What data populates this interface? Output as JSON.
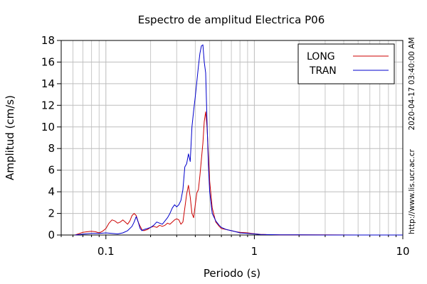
{
  "chart_data": {
    "type": "line",
    "title": "Espectro de amplitud Electrica P06",
    "xlabel": "Periodo (s)",
    "ylabel": "Amplitud (cm/s)",
    "x_scale": "log",
    "xlim": [
      0.05,
      10
    ],
    "ylim": [
      0,
      18
    ],
    "x_ticks": [
      {
        "value": 0.1,
        "label": "0.1"
      },
      {
        "value": 1,
        "label": "1"
      },
      {
        "value": 10,
        "label": "10"
      }
    ],
    "y_ticks": [
      {
        "value": 0,
        "label": "0"
      },
      {
        "value": 2,
        "label": "2"
      },
      {
        "value": 4,
        "label": "4"
      },
      {
        "value": 6,
        "label": "6"
      },
      {
        "value": 8,
        "label": "8"
      },
      {
        "value": 10,
        "label": "10"
      },
      {
        "value": 12,
        "label": "12"
      },
      {
        "value": 14,
        "label": "14"
      },
      {
        "value": 16,
        "label": "16"
      },
      {
        "value": 18,
        "label": "18"
      }
    ],
    "grid": true,
    "legend_position": "top-right",
    "series": [
      {
        "name": "LONG",
        "color": "#cc0000",
        "x": [
          0.062,
          0.065,
          0.07,
          0.075,
          0.08,
          0.085,
          0.09,
          0.095,
          0.1,
          0.105,
          0.11,
          0.115,
          0.12,
          0.125,
          0.13,
          0.135,
          0.14,
          0.145,
          0.15,
          0.155,
          0.16,
          0.165,
          0.17,
          0.175,
          0.18,
          0.19,
          0.2,
          0.21,
          0.22,
          0.23,
          0.24,
          0.25,
          0.26,
          0.27,
          0.28,
          0.29,
          0.3,
          0.31,
          0.32,
          0.33,
          0.34,
          0.35,
          0.36,
          0.37,
          0.38,
          0.39,
          0.4,
          0.41,
          0.42,
          0.43,
          0.44,
          0.45,
          0.46,
          0.47,
          0.48,
          0.49,
          0.5,
          0.52,
          0.55,
          0.58,
          0.6,
          0.65,
          0.7,
          0.75,
          0.8,
          0.9,
          1.0,
          1.1,
          1.2,
          1.5,
          2,
          3,
          5,
          7,
          10
        ],
        "y": [
          0.0,
          0.1,
          0.25,
          0.3,
          0.35,
          0.3,
          0.2,
          0.35,
          0.6,
          1.1,
          1.4,
          1.3,
          1.1,
          1.2,
          1.4,
          1.2,
          1.0,
          1.3,
          1.8,
          2.0,
          1.8,
          1.2,
          0.8,
          0.5,
          0.4,
          0.5,
          0.7,
          0.8,
          0.7,
          0.9,
          0.8,
          0.9,
          1.1,
          1.0,
          1.2,
          1.4,
          1.5,
          1.4,
          1.0,
          1.2,
          2.5,
          3.8,
          4.6,
          3.5,
          2.0,
          1.6,
          2.8,
          3.9,
          4.2,
          5.5,
          7.0,
          8.5,
          10.5,
          11.4,
          10.0,
          7.5,
          5.0,
          2.5,
          1.2,
          0.8,
          0.6,
          0.5,
          0.4,
          0.3,
          0.25,
          0.2,
          0.12,
          0.06,
          0.04,
          0.02,
          0.01,
          0.01,
          0.0,
          0.0,
          0.0
        ]
      },
      {
        "name": "TRAN",
        "color": "#0000cc",
        "x": [
          0.062,
          0.07,
          0.08,
          0.09,
          0.1,
          0.11,
          0.12,
          0.13,
          0.14,
          0.15,
          0.155,
          0.16,
          0.165,
          0.17,
          0.175,
          0.18,
          0.19,
          0.2,
          0.21,
          0.22,
          0.23,
          0.24,
          0.25,
          0.26,
          0.27,
          0.28,
          0.29,
          0.3,
          0.31,
          0.32,
          0.33,
          0.34,
          0.35,
          0.36,
          0.37,
          0.38,
          0.39,
          0.4,
          0.41,
          0.42,
          0.43,
          0.44,
          0.45,
          0.46,
          0.47,
          0.48,
          0.49,
          0.5,
          0.52,
          0.55,
          0.58,
          0.6,
          0.65,
          0.7,
          0.75,
          0.8,
          0.9,
          1.0,
          1.1,
          1.2,
          1.5,
          2,
          3,
          5,
          7,
          10
        ],
        "y": [
          0.0,
          0.08,
          0.15,
          0.15,
          0.2,
          0.15,
          0.1,
          0.2,
          0.4,
          0.8,
          1.2,
          1.7,
          1.2,
          0.6,
          0.4,
          0.5,
          0.6,
          0.7,
          0.9,
          1.2,
          1.1,
          1.0,
          1.3,
          1.6,
          2.0,
          2.5,
          2.8,
          2.6,
          2.8,
          3.2,
          4.2,
          6.3,
          6.6,
          7.5,
          6.8,
          10.0,
          11.5,
          12.8,
          14.2,
          15.6,
          16.8,
          17.5,
          17.6,
          16.0,
          15.0,
          10.5,
          6.5,
          4.0,
          2.0,
          1.3,
          0.9,
          0.7,
          0.5,
          0.4,
          0.3,
          0.2,
          0.15,
          0.1,
          0.05,
          0.04,
          0.02,
          0.01,
          0.0,
          0.0,
          0.0,
          0.0
        ]
      }
    ]
  },
  "side_labels": {
    "timestamp": "2020-04-17 03:40:00 AM",
    "url": "http://www.lis.ucr.ac.cr"
  }
}
